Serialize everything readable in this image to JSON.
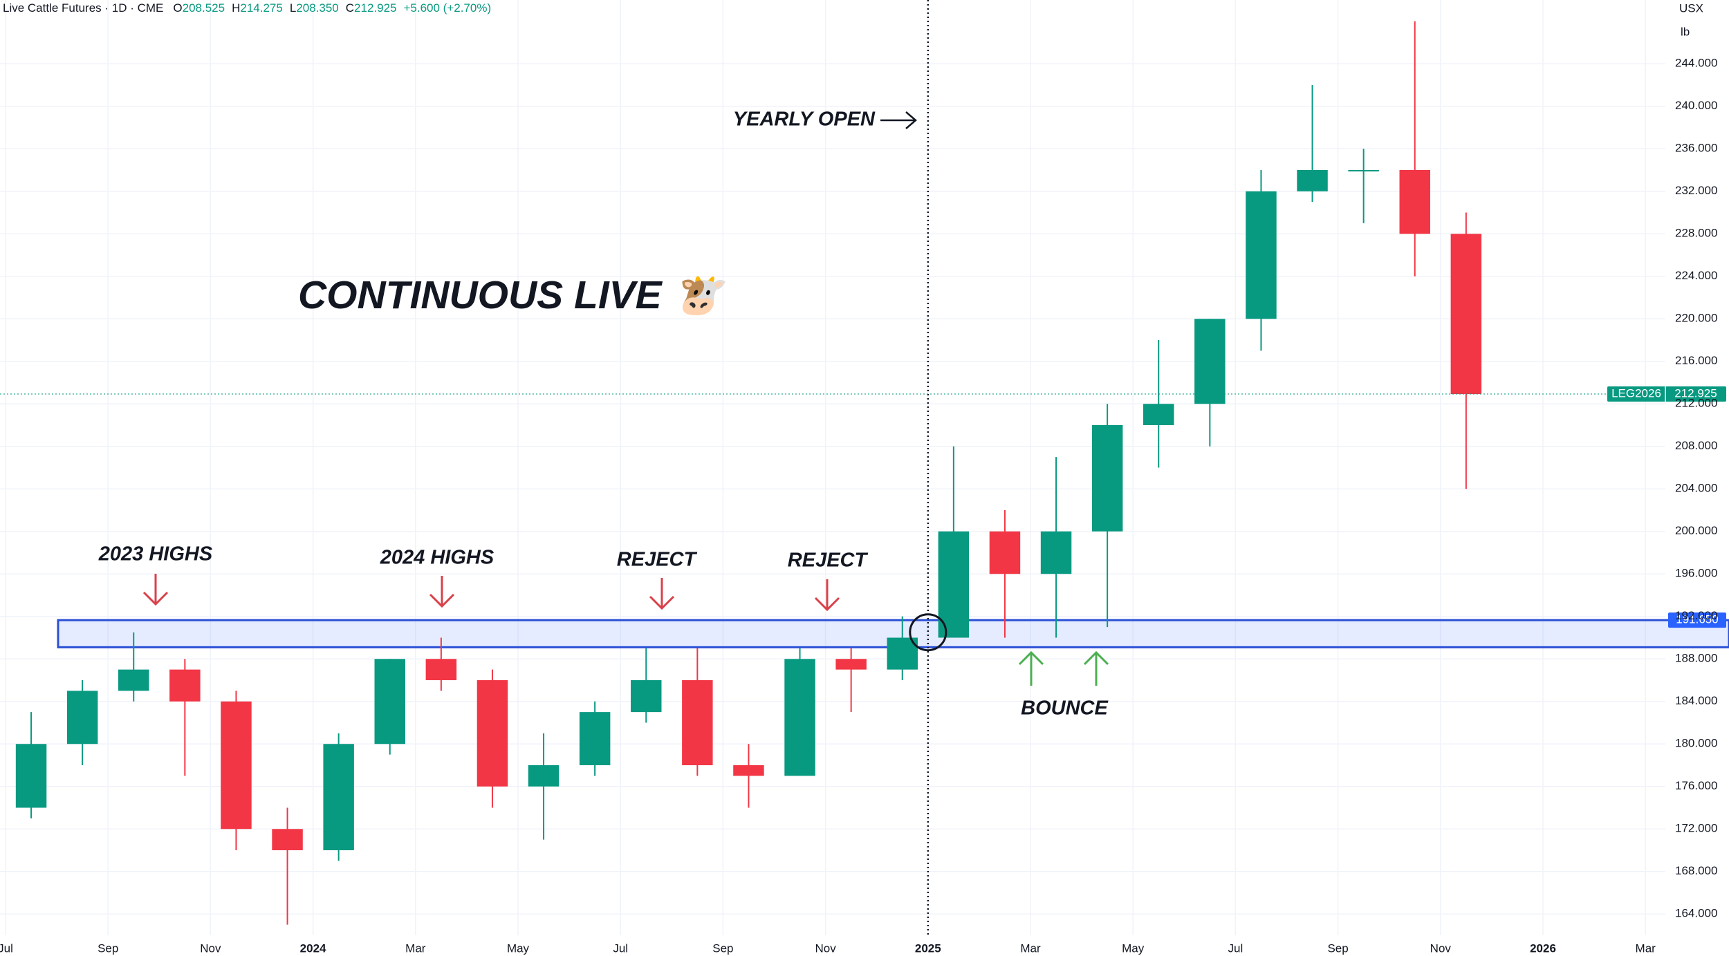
{
  "chart_data": {
    "type": "candlestick",
    "title": "Live Cattle Futures · 1D · CME",
    "ohlc_labels": [
      "O",
      "H",
      "L",
      "C"
    ],
    "ohlc": [
      {
        "value": 208.525,
        "label": "208.525"
      },
      {
        "value": 214.275,
        "label": "214.275"
      },
      {
        "value": 208.35,
        "label": "208.350"
      },
      {
        "value": 212.925,
        "label": "212.925"
      }
    ],
    "change": "+5.600 (+2.70%)",
    "currency": "USX",
    "unit": "lb",
    "x": [
      "2023-07",
      "2023-08",
      "2023-09",
      "2023-10",
      "2023-11",
      "2023-12",
      "2024-01",
      "2024-02",
      "2024-03",
      "2024-04",
      "2024-05",
      "2024-06",
      "2024-07",
      "2024-08",
      "2024-09",
      "2024-10",
      "2024-11",
      "2024-12",
      "2025-01",
      "2025-02",
      "2025-03",
      "2025-04",
      "2025-05",
      "2025-06",
      "2025-07",
      "2025-08",
      "2025-09",
      "2025-10",
      "2025-11"
    ],
    "open": [
      174,
      180,
      185,
      187,
      184,
      172,
      170,
      180,
      188,
      186,
      176,
      178,
      183,
      186,
      178,
      177,
      188,
      187,
      190,
      200,
      196,
      200,
      210,
      212,
      220,
      232,
      234,
      234,
      228
    ],
    "high": [
      183,
      186,
      190.5,
      188,
      185,
      174,
      181,
      188,
      190,
      187,
      181,
      184,
      189,
      189,
      180,
      189,
      189,
      192,
      208,
      202,
      207,
      212,
      218,
      220,
      234,
      242,
      236,
      248,
      230
    ],
    "low": [
      173,
      178,
      184,
      177,
      170,
      163,
      169,
      179,
      185,
      174,
      171,
      177,
      182,
      177,
      174,
      177,
      183,
      186,
      190,
      190,
      190,
      191,
      206,
      208,
      217,
      231,
      229,
      224,
      204
    ],
    "close": [
      180,
      185,
      187,
      184,
      172,
      170,
      180,
      188,
      186,
      176,
      178,
      183,
      186,
      178,
      177,
      188,
      187,
      190,
      200,
      196,
      200,
      210,
      212,
      220,
      232,
      234,
      234,
      228,
      212.925
    ],
    "up_color": "#089981",
    "down_color": "#f23645",
    "xlim": [
      "2023-07",
      "2026-04"
    ],
    "xticks": [
      {
        "value": "2023-07",
        "label": "Jul"
      },
      {
        "value": "2023-09",
        "label": "Sep"
      },
      {
        "value": "2023-11",
        "label": "Nov"
      },
      {
        "value": "2024-01",
        "label": "2024"
      },
      {
        "value": "2024-03",
        "label": "Mar"
      },
      {
        "value": "2024-05",
        "label": "May"
      },
      {
        "value": "2024-07",
        "label": "Jul"
      },
      {
        "value": "2024-09",
        "label": "Sep"
      },
      {
        "value": "2024-11",
        "label": "Nov"
      },
      {
        "value": "2025-01",
        "label": "2025"
      },
      {
        "value": "2025-03",
        "label": "Mar"
      },
      {
        "value": "2025-05",
        "label": "May"
      },
      {
        "value": "2025-07",
        "label": "Jul"
      },
      {
        "value": "2025-09",
        "label": "Sep"
      },
      {
        "value": "2025-11",
        "label": "Nov"
      },
      {
        "value": "2026-01",
        "label": "2026"
      },
      {
        "value": "2026-03",
        "label": "Mar"
      }
    ],
    "ylim": [
      162,
      250
    ],
    "yticks": [
      {
        "value": 164,
        "label": "164.000"
      },
      {
        "value": 168,
        "label": "168.000"
      },
      {
        "value": 172,
        "label": "172.000"
      },
      {
        "value": 176,
        "label": "176.000"
      },
      {
        "value": 180,
        "label": "180.000"
      },
      {
        "value": 184,
        "label": "184.000"
      },
      {
        "value": 188,
        "label": "188.000"
      },
      {
        "value": 192,
        "label": "192.000"
      },
      {
        "value": 196,
        "label": "196.000"
      },
      {
        "value": 200,
        "label": "200.000"
      },
      {
        "value": 204,
        "label": "204.000"
      },
      {
        "value": 208,
        "label": "208.000"
      },
      {
        "value": 212,
        "label": "212.000"
      },
      {
        "value": 216,
        "label": "216.000"
      },
      {
        "value": 220,
        "label": "220.000"
      },
      {
        "value": 224,
        "label": "224.000"
      },
      {
        "value": 228,
        "label": "228.000"
      },
      {
        "value": 232,
        "label": "232.000"
      },
      {
        "value": 236,
        "label": "236.000"
      },
      {
        "value": 240,
        "label": "240.000"
      },
      {
        "value": 244,
        "label": "244.000"
      }
    ],
    "grid": true,
    "last_price": {
      "name": "LEG2026",
      "value": 212.925,
      "label": "212.925"
    },
    "zone": {
      "low": 189.1,
      "high": {
        "value": 191.65,
        "label": "191.650"
      }
    },
    "yearly_open": "2025-01",
    "annotations": [
      "CONTINUOUS LIVE 🐮",
      "YEARLY OPEN",
      "2023 HIGHS",
      "2024 HIGHS",
      "REJECT",
      "REJECT",
      "BOUNCE"
    ]
  }
}
